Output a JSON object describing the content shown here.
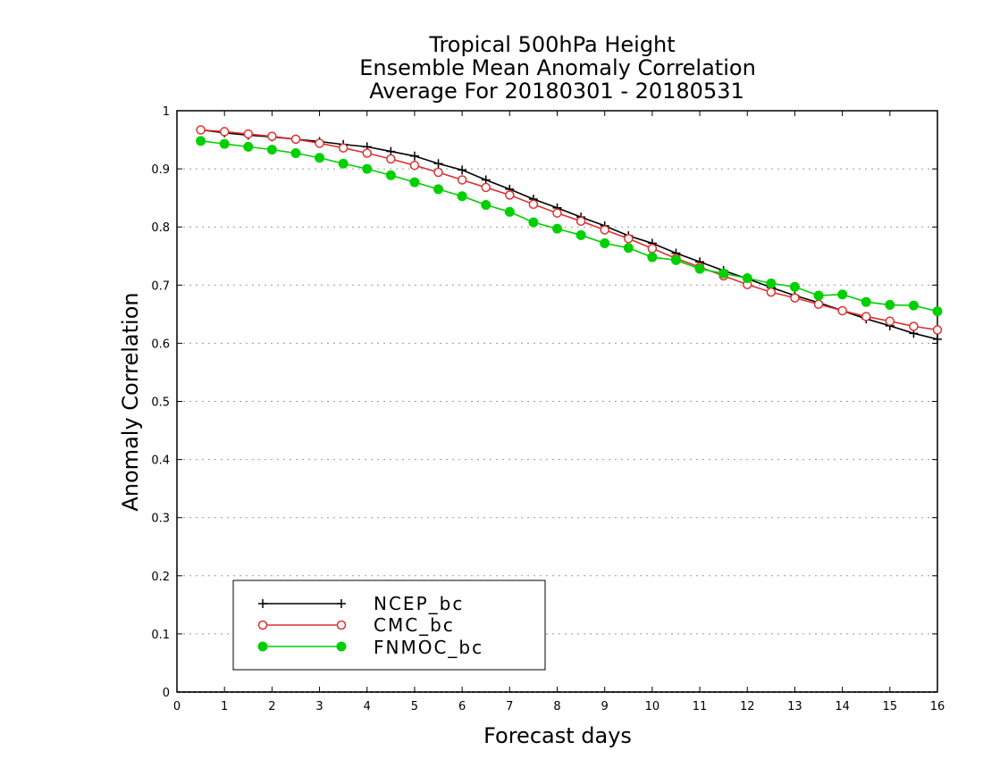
{
  "chart_data": {
    "type": "line",
    "title_lines": [
      "Tropical 500hPa Height",
      "Ensemble Mean Anomaly Correlation",
      "Average For 20180301 - 20180531"
    ],
    "xlabel": "Forecast days",
    "ylabel": "Anomaly Correlation",
    "xlim": [
      0,
      16
    ],
    "ylim": [
      0,
      1
    ],
    "x_ticks": [
      0,
      1,
      2,
      3,
      4,
      5,
      6,
      7,
      8,
      9,
      10,
      11,
      12,
      13,
      14,
      15,
      16
    ],
    "y_ticks": [
      0,
      0.1,
      0.2,
      0.3,
      0.4,
      0.5,
      0.6,
      0.7,
      0.8,
      0.9,
      1
    ],
    "grid": "horizontal dotted",
    "legend_position": "bottom-left",
    "x": [
      0.5,
      1,
      1.5,
      2,
      2.5,
      3,
      3.5,
      4,
      4.5,
      5,
      5.5,
      6,
      6.5,
      7,
      7.5,
      8,
      8.5,
      9,
      9.5,
      10,
      10.5,
      11,
      11.5,
      12,
      12.5,
      13,
      13.5,
      14,
      14.5,
      15,
      15.5,
      16
    ],
    "series": [
      {
        "name": "NCEP_bc",
        "color": "#000000",
        "marker": "plus",
        "values": [
          0.967,
          0.962,
          0.958,
          0.955,
          0.951,
          0.947,
          0.942,
          0.938,
          0.93,
          0.922,
          0.909,
          0.898,
          0.881,
          0.865,
          0.848,
          0.833,
          0.817,
          0.802,
          0.785,
          0.772,
          0.755,
          0.74,
          0.725,
          0.711,
          0.696,
          0.682,
          0.67,
          0.656,
          0.642,
          0.63,
          0.617,
          0.607
        ]
      },
      {
        "name": "CMC_bc",
        "color": "#e03030",
        "marker": "open-circle",
        "values": [
          0.967,
          0.964,
          0.96,
          0.956,
          0.951,
          0.944,
          0.936,
          0.927,
          0.917,
          0.906,
          0.894,
          0.881,
          0.868,
          0.855,
          0.839,
          0.824,
          0.81,
          0.795,
          0.78,
          0.763,
          0.746,
          0.731,
          0.716,
          0.701,
          0.688,
          0.678,
          0.667,
          0.656,
          0.646,
          0.638,
          0.629,
          0.623
        ]
      },
      {
        "name": "FNMOC_bc",
        "color": "#00d000",
        "marker": "filled-circle",
        "values": [
          0.948,
          0.943,
          0.938,
          0.933,
          0.927,
          0.919,
          0.909,
          0.9,
          0.889,
          0.877,
          0.865,
          0.853,
          0.838,
          0.826,
          0.808,
          0.797,
          0.786,
          0.772,
          0.764,
          0.748,
          0.743,
          0.728,
          0.72,
          0.712,
          0.703,
          0.697,
          0.682,
          0.684,
          0.671,
          0.666,
          0.665,
          0.655
        ]
      }
    ]
  }
}
